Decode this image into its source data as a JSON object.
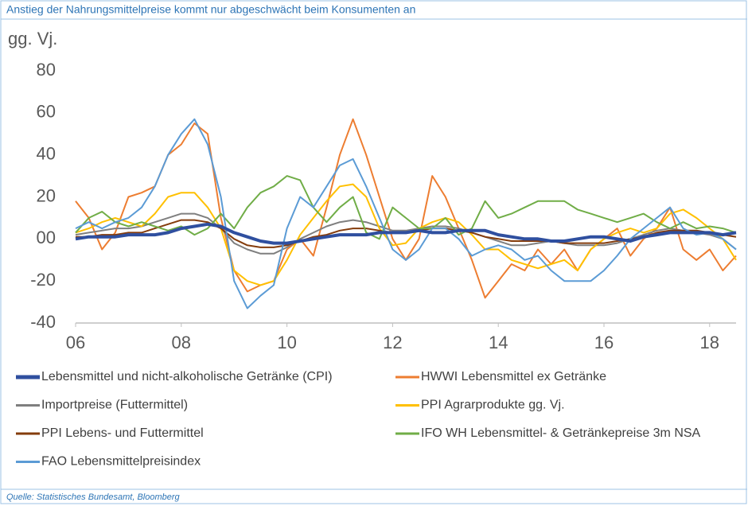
{
  "chart_data": {
    "type": "line",
    "title": "Anstieg der Nahrungsmittelpreise kommt nur abgeschwächt beim Konsumenten an",
    "y_label": "gg. Vj.",
    "source": "Quelle: Statistisches Bundesamt, Bloomberg",
    "x": [
      2006,
      2006.25,
      2006.5,
      2006.75,
      2007,
      2007.25,
      2007.5,
      2007.75,
      2008,
      2008.25,
      2008.5,
      2008.75,
      2009,
      2009.25,
      2009.5,
      2009.75,
      2010,
      2010.25,
      2010.5,
      2010.75,
      2011,
      2011.25,
      2011.5,
      2011.75,
      2012,
      2012.25,
      2012.5,
      2012.75,
      2013,
      2013.25,
      2013.5,
      2013.75,
      2014,
      2014.25,
      2014.5,
      2014.75,
      2015,
      2015.25,
      2015.5,
      2015.75,
      2016,
      2016.25,
      2016.5,
      2016.75,
      2017,
      2017.25,
      2017.5,
      2017.75,
      2018,
      2018.25,
      2018.5
    ],
    "xlim": [
      2006,
      2018.5
    ],
    "xticks": [
      {
        "value": 2006,
        "label": "06"
      },
      {
        "value": 2008,
        "label": "08"
      },
      {
        "value": 2010,
        "label": "10"
      },
      {
        "value": 2012,
        "label": "12"
      },
      {
        "value": 2014,
        "label": "14"
      },
      {
        "value": 2016,
        "label": "16"
      },
      {
        "value": 2018,
        "label": "18"
      }
    ],
    "ylim": [
      -40,
      80
    ],
    "yticks": [
      -40,
      -20,
      {
        "value": 0,
        "label": "00"
      },
      20,
      40,
      60,
      80
    ],
    "grid": false,
    "series": [
      {
        "name": "Lebensmittel und nicht-alkoholische Getränke (CPI)",
        "color": "#2f4f9f",
        "width": 4,
        "values": [
          0,
          1,
          1,
          1,
          2,
          2,
          2,
          3,
          5,
          6,
          7,
          6,
          3,
          1,
          -1,
          -2,
          -2,
          -1,
          0,
          1,
          2,
          2,
          2,
          3,
          3,
          3,
          4,
          3,
          3,
          4,
          4,
          4,
          2,
          1,
          0,
          0,
          -1,
          -1,
          0,
          1,
          1,
          0,
          -1,
          1,
          2,
          3,
          3,
          3,
          3,
          2,
          3
        ]
      },
      {
        "name": "HWWI Lebensmittel ex Getränke",
        "color": "#ed7d31",
        "width": 2,
        "values": [
          18,
          10,
          -5,
          3,
          20,
          22,
          25,
          40,
          45,
          55,
          50,
          10,
          -15,
          -25,
          -22,
          -20,
          -5,
          0,
          -8,
          15,
          40,
          57,
          40,
          20,
          0,
          -10,
          0,
          30,
          20,
          5,
          -10,
          -28,
          -20,
          -12,
          -15,
          -5,
          -12,
          -5,
          -15,
          -5,
          0,
          5,
          -8,
          0,
          5,
          15,
          -5,
          -10,
          -5,
          -15,
          -8
        ]
      },
      {
        "name": "Importpreise (Futtermittel)",
        "color": "#7f7f7f",
        "width": 2,
        "values": [
          2,
          3,
          4,
          5,
          5,
          6,
          8,
          10,
          12,
          12,
          10,
          5,
          -2,
          -5,
          -7,
          -7,
          -4,
          0,
          3,
          6,
          8,
          9,
          8,
          6,
          4,
          4,
          5,
          6,
          6,
          5,
          3,
          1,
          -1,
          -3,
          -3,
          -2,
          -1,
          -2,
          -3,
          -3,
          -3,
          -2,
          0,
          2,
          4,
          5,
          4,
          3,
          2,
          0,
          -5
        ]
      },
      {
        "name": "PPI Agrarprodukte gg. Vj.",
        "color": "#ffc000",
        "width": 2,
        "values": [
          3,
          5,
          8,
          10,
          8,
          6,
          12,
          20,
          22,
          22,
          15,
          5,
          -15,
          -20,
          -22,
          -20,
          -10,
          2,
          10,
          18,
          25,
          26,
          20,
          5,
          -3,
          -2,
          5,
          8,
          10,
          8,
          2,
          -5,
          -5,
          -10,
          -12,
          -14,
          -12,
          -10,
          -15,
          -5,
          0,
          3,
          5,
          3,
          5,
          12,
          14,
          10,
          5,
          0,
          -10
        ]
      },
      {
        "name": "PPI Lebens- und Futtermittel",
        "color": "#843c0c",
        "width": 2,
        "values": [
          1,
          1,
          2,
          2,
          3,
          3,
          5,
          7,
          9,
          9,
          8,
          5,
          0,
          -3,
          -4,
          -4,
          -3,
          -1,
          1,
          2,
          4,
          5,
          5,
          4,
          3,
          3,
          4,
          5,
          5,
          4,
          3,
          1,
          0,
          -1,
          -1,
          -1,
          -1,
          -2,
          -2,
          -2,
          -2,
          -1,
          0,
          1,
          3,
          4,
          4,
          4,
          3,
          2,
          1
        ]
      },
      {
        "name": "IFO WH Lebensmittel- & Getränkepreise 3m NSA",
        "color": "#70ad47",
        "width": 2,
        "values": [
          3,
          10,
          13,
          8,
          6,
          8,
          6,
          4,
          6,
          2,
          5,
          12,
          5,
          15,
          22,
          25,
          30,
          28,
          15,
          8,
          15,
          20,
          3,
          0,
          15,
          10,
          5,
          5,
          10,
          2,
          5,
          18,
          10,
          12,
          15,
          18,
          18,
          18,
          14,
          12,
          10,
          8,
          10,
          12,
          8,
          5,
          8,
          5,
          6,
          5,
          3
        ]
      },
      {
        "name": "FAO Lebensmittelpreisindex",
        "color": "#5b9bd5",
        "width": 2,
        "values": [
          5,
          8,
          5,
          8,
          10,
          15,
          25,
          40,
          50,
          57,
          45,
          20,
          -20,
          -33,
          -27,
          -22,
          5,
          20,
          15,
          25,
          35,
          38,
          25,
          10,
          -5,
          -10,
          -5,
          5,
          5,
          0,
          -8,
          -5,
          -3,
          -5,
          -10,
          -8,
          -15,
          -20,
          -20,
          -20,
          -15,
          -8,
          0,
          5,
          10,
          15,
          5,
          2,
          3,
          0,
          -5
        ]
      }
    ]
  }
}
